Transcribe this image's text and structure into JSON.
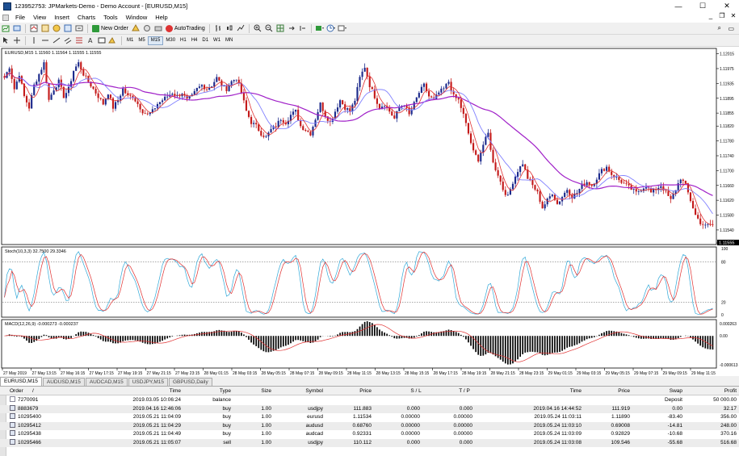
{
  "window": {
    "title": "123952753: JPMarkets-Demo - Demo Account - [EURUSD,M15]",
    "controls": [
      "—",
      "☐",
      "✕"
    ],
    "mdi_controls": [
      "_",
      "❐",
      "✕"
    ]
  },
  "menu": [
    "File",
    "View",
    "Insert",
    "Charts",
    "Tools",
    "Window",
    "Help"
  ],
  "toolbar": {
    "new_order_label": "New Order",
    "autotrading_label": "AutoTrading",
    "timeframes": [
      "M1",
      "M5",
      "M15",
      "M30",
      "H1",
      "H4",
      "D1",
      "W1",
      "MN"
    ],
    "active_timeframe": "M15"
  },
  "chart": {
    "header": "EURUSD,M15  1.11560 1.11564 1.11555 1.11555",
    "price_labels": [
      "1.12015",
      "1.11975",
      "1.11935",
      "1.11895",
      "1.11855",
      "1.11820",
      "1.11780",
      "1.11740",
      "1.11700",
      "1.11660",
      "1.11620",
      "1.11580",
      "1.11540",
      "1.11505"
    ],
    "current_price": "1.11555",
    "stoch_header": "Stoch(10,3,3) 32.7500 29.3346",
    "stoch_levels": [
      "100",
      "80",
      "20",
      "0"
    ],
    "macd_header": "MACD(12,26,9) -0.000273 -0.000237",
    "macd_levels": [
      "0.000263",
      "0.00",
      "-0.000613"
    ],
    "time_labels": [
      "27 May 2019",
      "27 May 13:15",
      "27 May 16:15",
      "27 May 17:15",
      "27 May 19:15",
      "27 May 21:15",
      "27 May 23:15",
      "28 May 01:15",
      "28 May 03:15",
      "28 May 05:15",
      "28 May 07:15",
      "28 May 09:15",
      "28 May 11:15",
      "28 May 13:15",
      "28 May 15:15",
      "28 May 17:15",
      "28 May 19:15",
      "28 May 21:15",
      "28 May 23:15",
      "29 May 01:15",
      "29 May 03:15",
      "29 May 05:15",
      "29 May 07:15",
      "29 May 09:15",
      "29 May 11:15"
    ],
    "colors": {
      "bull": "#1c2a8c",
      "bear": "#c41a1a",
      "ma_slow": "#a020c8",
      "ma_mid": "#8080ff",
      "ma_fast": "#e03030",
      "stoch_main": "#30a8d8",
      "stoch_signal": "#e03030",
      "macd_hist": "#000000",
      "macd_signal": "#e03030"
    }
  },
  "symbol_tabs": [
    "EURUSD,M15",
    "AUDUSD,M15",
    "AUDCAD,M15",
    "USDJPY,M15",
    "GBPUSD,Daily"
  ],
  "active_symbol_tab": "EURUSD,M15",
  "terminal": {
    "columns": [
      "Order",
      "/",
      "Time",
      "Type",
      "Size",
      "Symbol",
      "Price",
      "S / L",
      "T / P",
      "Time",
      "Price",
      "Swap",
      "Profit"
    ],
    "rows": [
      {
        "order": "7270091",
        "time": "2019.03.05 10:06:24",
        "type": "balance",
        "size": "",
        "symbol": "",
        "price": "",
        "sl": "",
        "tp": "",
        "ctime": "",
        "cprice": "",
        "swap": "Deposit",
        "profit": "50 000.00"
      },
      {
        "order": "8883679",
        "time": "2019.04.16 12:46:06",
        "type": "buy",
        "size": "1.00",
        "symbol": "usdjpy",
        "price": "111.883",
        "sl": "0.000",
        "tp": "0.000",
        "ctime": "2019.04.16 14:44:52",
        "cprice": "111.919",
        "swap": "0.00",
        "profit": "32.17"
      },
      {
        "order": "10295400",
        "time": "2019.05.21 11:04:09",
        "type": "buy",
        "size": "1.00",
        "symbol": "eurusd",
        "price": "1.11534",
        "sl": "0.00000",
        "tp": "0.00000",
        "ctime": "2019.05.24 11:03:11",
        "cprice": "1.11890",
        "swap": "-83.40",
        "profit": "356.00"
      },
      {
        "order": "10295412",
        "time": "2019.05.21 11:04:29",
        "type": "buy",
        "size": "1.00",
        "symbol": "audusd",
        "price": "0.68760",
        "sl": "0.00000",
        "tp": "0.00000",
        "ctime": "2019.05.24 11:03:10",
        "cprice": "0.69008",
        "swap": "-14.81",
        "profit": "248.00"
      },
      {
        "order": "10295438",
        "time": "2019.05.21 11:04:49",
        "type": "buy",
        "size": "1.00",
        "symbol": "audcad",
        "price": "0.92331",
        "sl": "0.00000",
        "tp": "0.00000",
        "ctime": "2019.05.24 11:03:09",
        "cprice": "0.92829",
        "swap": "-10.68",
        "profit": "370.16"
      },
      {
        "order": "10295466",
        "time": "2019.05.21 11:05:07",
        "type": "sell",
        "size": "1.00",
        "symbol": "usdjpy",
        "price": "110.112",
        "sl": "0.000",
        "tp": "0.000",
        "ctime": "2019.05.24 11:03:08",
        "cprice": "109.546",
        "swap": "-55.68",
        "profit": "516.68"
      }
    ]
  },
  "chart_data": {
    "type": "candlestick",
    "symbol": "EURUSD",
    "timeframe": "M15",
    "price_range": [
      1.11505,
      1.12025
    ],
    "close_path": [
      1.1195,
      1.1198,
      1.1192,
      1.1196,
      1.119,
      1.1187,
      1.1193,
      1.1196,
      1.1199,
      1.1189,
      1.1192,
      1.1194,
      1.119,
      1.1192,
      1.1197,
      1.1199,
      1.1196,
      1.1194,
      1.1192,
      1.119,
      1.1188,
      1.1191,
      1.1187,
      1.1189,
      1.1192,
      1.119,
      1.119,
      1.1188,
      1.1186,
      1.1185,
      1.1186,
      1.1188,
      1.1189,
      1.119,
      1.1191,
      1.119,
      1.1191,
      1.1189,
      1.119,
      1.1192,
      1.1193,
      1.1192,
      1.1193,
      1.1195,
      1.1193,
      1.1192,
      1.1194,
      1.1195,
      1.1191,
      1.1186,
      1.1183,
      1.1182,
      1.118,
      1.1179,
      1.1181,
      1.1182,
      1.1184,
      1.1183,
      1.1185,
      1.1186,
      1.1182,
      1.1181,
      1.118,
      1.1184,
      1.1188,
      1.1185,
      1.1183,
      1.1186,
      1.1189,
      1.1187,
      1.1186,
      1.1189,
      1.1195,
      1.1198,
      1.1193,
      1.119,
      1.1187,
      1.1188,
      1.1186,
      1.1184,
      1.1187,
      1.1188,
      1.1185,
      1.1188,
      1.1191,
      1.1193,
      1.119,
      1.1189,
      1.1191,
      1.1192,
      1.1194,
      1.119,
      1.1189,
      1.1185,
      1.118,
      1.1175,
      1.1173,
      1.1177,
      1.118,
      1.1172,
      1.1169,
      1.1165,
      1.1163,
      1.1167,
      1.117,
      1.1172,
      1.1168,
      1.1166,
      1.1164,
      1.116,
      1.1162,
      1.1164,
      1.1161,
      1.1163,
      1.1165,
      1.1163,
      1.1164,
      1.1166,
      1.1167,
      1.1166,
      1.1168,
      1.117,
      1.1171,
      1.1169,
      1.1168,
      1.1167,
      1.1166,
      1.1165,
      1.1164,
      1.1165,
      1.1166,
      1.1164,
      1.1165,
      1.1166,
      1.1164,
      1.1162,
      1.1165,
      1.1168,
      1.1166,
      1.1162,
      1.1158,
      1.1156,
      1.1155,
      1.11555
    ],
    "indicators": [
      "MA slow",
      "MA mid",
      "MA fast",
      "Stoch(10,3,3)",
      "MACD(12,26,9)"
    ]
  }
}
